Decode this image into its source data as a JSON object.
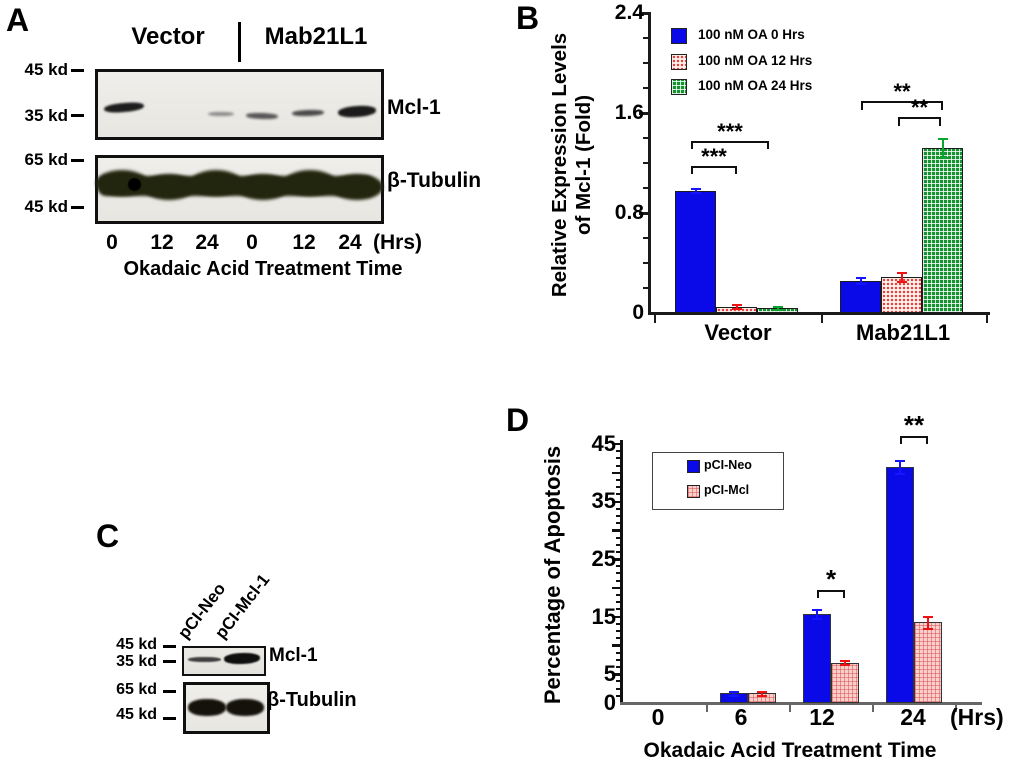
{
  "panelA": {
    "label": "A",
    "groups": [
      "Vector",
      "Mab21L1"
    ],
    "markers": [
      "45 kd",
      "35 kd",
      "65 kd",
      "45 kd"
    ],
    "blot_labels": [
      "Mcl-1",
      "β-Tubulin"
    ],
    "lane_labels": [
      "0",
      "12",
      "24",
      "0",
      "12",
      "24"
    ],
    "unit_label": "(Hrs)",
    "x_title": "Okadaic Acid Treatment Time"
  },
  "panelB": {
    "label": "B"
  },
  "panelC": {
    "label": "C",
    "lane_labels": [
      "pCI-Neo",
      "pCI-Mcl-1"
    ],
    "markers": [
      "45 kd",
      "35 kd",
      "65 kd",
      "45 kd"
    ],
    "blot_labels": [
      "Mcl-1",
      "β-Tubulin"
    ]
  },
  "panelD": {
    "label": "D"
  },
  "chart_data": [
    {
      "id": "B",
      "type": "bar",
      "title": "",
      "ylabel": "Relative Expression Levels\nof Mcl-1 (Fold)",
      "ylim": [
        0,
        2.4
      ],
      "yticks": [
        "0",
        "0.8",
        "1.6",
        "2.4"
      ],
      "ytick_values": [
        0,
        0.8,
        1.6,
        2.4
      ],
      "grid": false,
      "legend_position": "top-left",
      "categories": [
        "Vector",
        "Mab21L1"
      ],
      "series": [
        {
          "name": "100 nM OA 0 Hrs",
          "pattern": "blue-solid",
          "color": "#1414ff",
          "values": [
            0.98,
            0.26
          ],
          "errors": [
            0.012,
            0.02
          ]
        },
        {
          "name": "100 nM OA 12 Hrs",
          "pattern": "pink-dots",
          "color": "#ee1212",
          "values": [
            0.05,
            0.29
          ],
          "errors": [
            0.012,
            0.03
          ]
        },
        {
          "name": "100 nM OA 24 Hrs",
          "pattern": "green-grid",
          "color": "#0ca52c",
          "values": [
            0.04,
            1.32
          ],
          "errors": [
            0.008,
            0.07
          ]
        }
      ],
      "significance": [
        {
          "label": "***",
          "pair": "Vector: 0 Hrs vs 12 Hrs"
        },
        {
          "label": "***",
          "pair": "Vector: 0 Hrs vs 24 Hrs"
        },
        {
          "label": "**",
          "pair": "Mab21L1: 0 Hrs vs 24 Hrs"
        },
        {
          "label": "**",
          "pair": "Mab21L1: 12 Hrs vs 24 Hrs"
        }
      ]
    },
    {
      "id": "D",
      "type": "bar",
      "title": "",
      "ylabel": "Percentage of Apoptosis",
      "xlabel": "Okadaic Acid Treatment Time",
      "x_unit_label": "(Hrs)",
      "ylim": [
        0,
        45
      ],
      "yticks": [
        "0",
        "5",
        "15",
        "25",
        "35",
        "45"
      ],
      "ytick_values": [
        0,
        5,
        15,
        25,
        35,
        45
      ],
      "grid": false,
      "legend_position": "top-left-box",
      "categories": [
        "0",
        "6",
        "12",
        "24"
      ],
      "series": [
        {
          "name": "pCI-Neo",
          "pattern": "blue-solid",
          "color": "#1414ff",
          "values": [
            0,
            1.7,
            15.5,
            41
          ],
          "errors": [
            0,
            0.25,
            0.7,
            1.0
          ]
        },
        {
          "name": "pCI-Mcl",
          "pattern": "pink-grid",
          "color": "#ee1212",
          "values": [
            0,
            1.7,
            7,
            14
          ],
          "errors": [
            0,
            0.25,
            0.3,
            1.0
          ]
        }
      ],
      "significance": [
        {
          "label": "*",
          "pair": "12 Hrs: pCI-Neo vs pCI-Mcl"
        },
        {
          "label": "**",
          "pair": "24 Hrs: pCI-Neo vs pCI-Mcl"
        }
      ]
    }
  ]
}
